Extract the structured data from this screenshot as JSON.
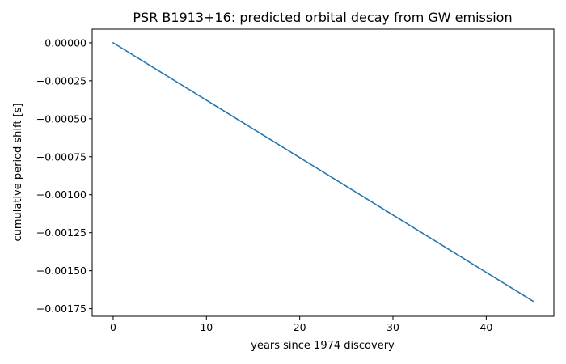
{
  "chart_data": {
    "type": "line",
    "title": "PSR B1913+16: predicted orbital decay from GW emission",
    "xlabel": "years since 1974 discovery",
    "ylabel": "cumulative period shift [s]",
    "xlim": [
      -2.25,
      47.25
    ],
    "ylim": [
      -0.0018,
      9e-05
    ],
    "xticks": [
      0,
      10,
      20,
      30,
      40
    ],
    "xtick_labels": [
      "0",
      "10",
      "20",
      "30",
      "40"
    ],
    "yticks": [
      0.0,
      -0.00025,
      -0.0005,
      -0.00075,
      -0.001,
      -0.00125,
      -0.0015,
      -0.00175
    ],
    "ytick_labels": [
      "0.00000",
      "−0.00025",
      "−0.00050",
      "−0.00075",
      "−0.00100",
      "−0.00125",
      "−0.00150",
      "−0.00175"
    ],
    "grid": false,
    "series": [
      {
        "color": "#1f77b4",
        "x": [
          0,
          45
        ],
        "y": [
          0.0,
          -0.0017
        ]
      }
    ]
  }
}
